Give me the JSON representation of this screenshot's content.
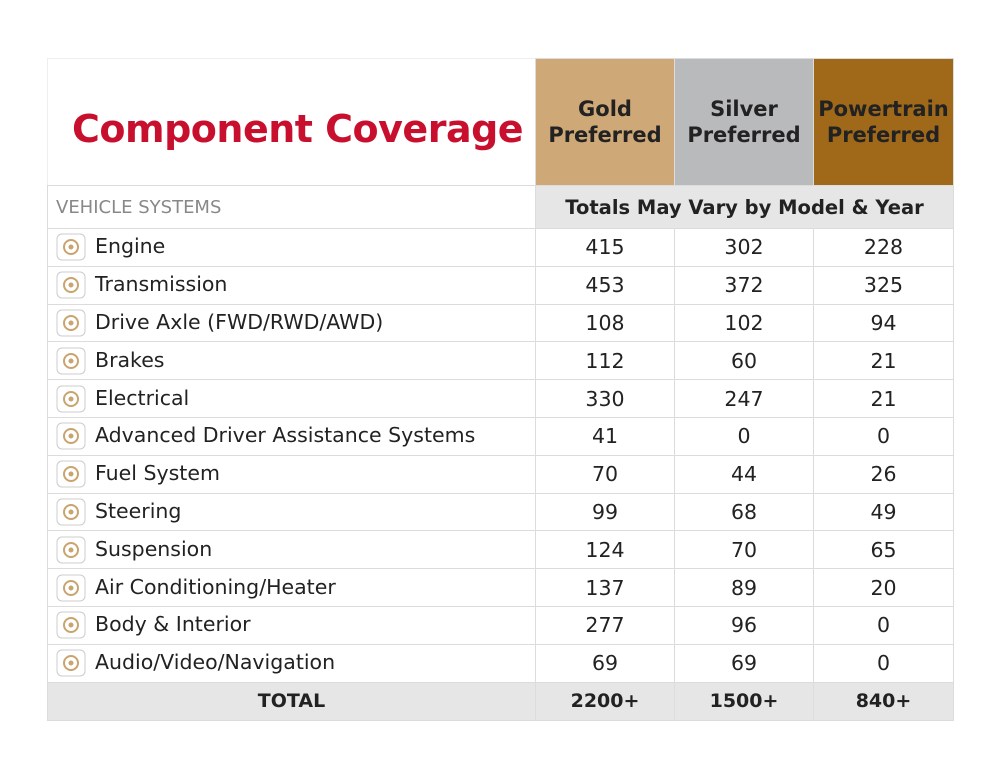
{
  "header": {
    "title": "Component Coverage",
    "plans": [
      "Gold Preferred",
      "Silver Preferred",
      "Powertrain Preferred"
    ]
  },
  "subheader": {
    "label": "VEHICLE SYSTEMS",
    "note": "Totals May Vary by Model & Year"
  },
  "table": {
    "rows": [
      {
        "name": "Engine",
        "values": [
          415,
          302,
          228
        ]
      },
      {
        "name": "Transmission",
        "values": [
          453,
          372,
          325
        ]
      },
      {
        "name": "Drive Axle (FWD/RWD/AWD)",
        "values": [
          108,
          102,
          94
        ]
      },
      {
        "name": "Brakes",
        "values": [
          112,
          60,
          21
        ]
      },
      {
        "name": "Electrical",
        "values": [
          330,
          247,
          21
        ]
      },
      {
        "name": "Advanced Driver Assistance Systems",
        "values": [
          41,
          0,
          0
        ]
      },
      {
        "name": "Fuel System",
        "values": [
          70,
          44,
          26
        ]
      },
      {
        "name": "Steering",
        "values": [
          99,
          68,
          49
        ]
      },
      {
        "name": "Suspension",
        "values": [
          124,
          70,
          65
        ]
      },
      {
        "name": "Air Conditioning/Heater",
        "values": [
          137,
          89,
          20
        ]
      },
      {
        "name": "Body & Interior",
        "values": [
          277,
          96,
          0
        ]
      },
      {
        "name": "Audio/Video/Navigation",
        "values": [
          69,
          69,
          0
        ]
      }
    ],
    "total": {
      "label": "TOTAL",
      "values": [
        "2200+",
        "1500+",
        "840+"
      ]
    }
  }
}
